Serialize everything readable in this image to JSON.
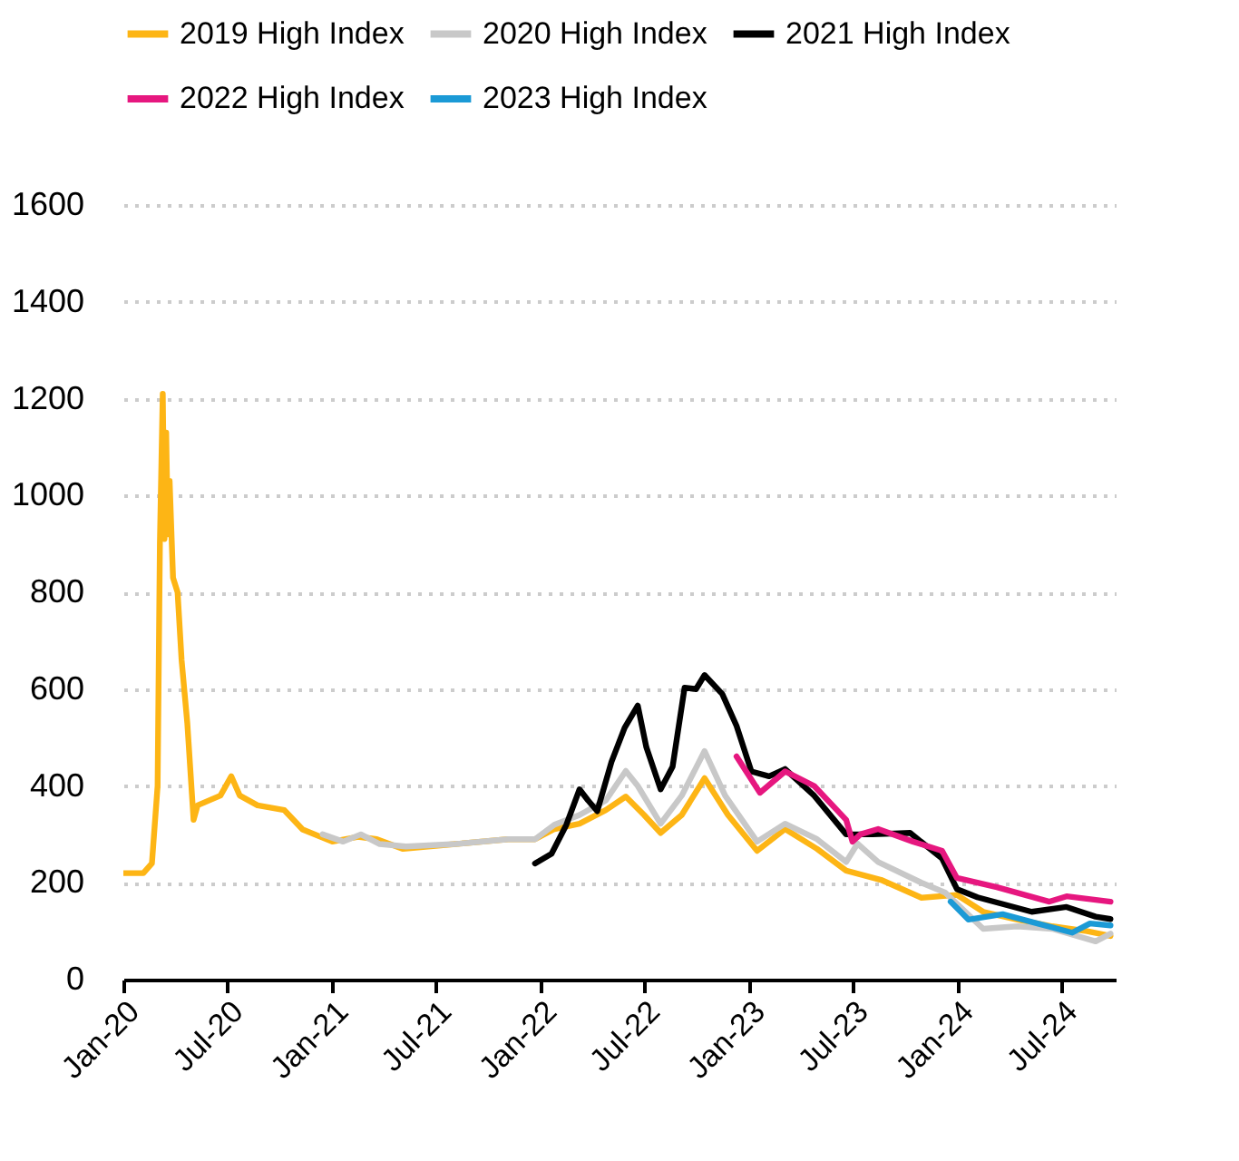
{
  "chart_data": {
    "type": "line",
    "xlim": [
      "2020-01-01",
      "2024-10-04"
    ],
    "xticks": [
      {
        "value": "2020-01-01",
        "label": "Jan-20"
      },
      {
        "value": "2020-07-01",
        "label": "Jul-20"
      },
      {
        "value": "2021-01-01",
        "label": "Jan-21"
      },
      {
        "value": "2021-07-01",
        "label": "Jul-21"
      },
      {
        "value": "2022-01-01",
        "label": "Jan-22"
      },
      {
        "value": "2022-07-01",
        "label": "Jul-22"
      },
      {
        "value": "2023-01-01",
        "label": "Jan-23"
      },
      {
        "value": "2023-07-01",
        "label": "Jul-23"
      },
      {
        "value": "2024-01-01",
        "label": "Jan-24"
      },
      {
        "value": "2024-07-01",
        "label": "Jul-24"
      }
    ],
    "ylim": [
      0,
      1600
    ],
    "yticks": [
      0,
      200,
      400,
      600,
      800,
      1000,
      1200,
      1400,
      1600
    ],
    "grid": "y",
    "legend": "top",
    "marker": "none",
    "line_style": "solid",
    "series": [
      {
        "name": "2019 High Index",
        "color": "#fdb515",
        "x": [
          "2020-01-01",
          "2020-02-05",
          "2020-02-20",
          "2020-03-01",
          "2020-03-05",
          "2020-03-10",
          "2020-03-13",
          "2020-03-16",
          "2020-03-19",
          "2020-03-22",
          "2020-03-28",
          "2020-04-05",
          "2020-04-12",
          "2020-04-22",
          "2020-05-03",
          "2020-05-10",
          "2020-06-19",
          "2020-07-08",
          "2020-07-23",
          "2020-08-23",
          "2020-10-09",
          "2020-11-10",
          "2021-01-01",
          "2021-02-15",
          "2021-03-20",
          "2021-05-05",
          "2021-08-05",
          "2021-11-05",
          "2021-12-22",
          "2022-01-25",
          "2022-03-10",
          "2022-04-25",
          "2022-05-30",
          "2022-07-01",
          "2022-07-30",
          "2022-09-05",
          "2022-10-15",
          "2022-11-25",
          "2023-01-15",
          "2023-03-05",
          "2023-04-30",
          "2023-06-20",
          "2023-08-20",
          "2023-10-30",
          "2023-12-31",
          "2024-02-15",
          "2024-04-15",
          "2024-06-15",
          "2024-08-15",
          "2024-09-25"
        ],
        "values": [
          220,
          220,
          240,
          400,
          900,
          1210,
          910,
          1130,
          920,
          1030,
          830,
          800,
          660,
          530,
          330,
          360,
          380,
          420,
          380,
          360,
          350,
          310,
          285,
          295,
          290,
          270,
          280,
          290,
          290,
          311,
          322,
          350,
          378,
          340,
          303,
          340,
          416,
          340,
          266,
          311,
          270,
          225,
          206,
          169,
          175,
          140,
          124,
          110,
          100,
          90
        ]
      },
      {
        "name": "2020 High Index",
        "color": "#c8c8c8",
        "x": [
          "2020-12-15",
          "2021-01-20",
          "2021-02-20",
          "2021-03-25",
          "2021-05-10",
          "2021-08-05",
          "2021-11-05",
          "2021-12-22",
          "2022-01-25",
          "2022-03-10",
          "2022-04-25",
          "2022-05-30",
          "2022-06-20",
          "2022-07-30",
          "2022-09-05",
          "2022-10-15",
          "2022-11-20",
          "2023-01-15",
          "2023-03-05",
          "2023-04-30",
          "2023-06-20",
          "2023-07-10",
          "2023-08-15",
          "2023-10-30",
          "2023-12-10",
          "2024-02-15",
          "2024-04-15",
          "2024-06-15",
          "2024-08-30",
          "2024-09-25"
        ],
        "values": [
          300,
          285,
          300,
          280,
          275,
          280,
          290,
          290,
          320,
          340,
          370,
          431,
          400,
          322,
          380,
          472,
          380,
          285,
          322,
          290,
          243,
          281,
          243,
          200,
          180,
          105,
          110,
          105,
          79,
          95
        ]
      },
      {
        "name": "2021 High Index",
        "color": "#000000",
        "x": [
          "2021-12-22",
          "2022-01-20",
          "2022-02-15",
          "2022-03-10",
          "2022-03-25",
          "2022-04-10",
          "2022-05-05",
          "2022-05-28",
          "2022-06-20",
          "2022-07-05",
          "2022-07-30",
          "2022-08-20",
          "2022-09-10",
          "2022-09-30",
          "2022-10-15",
          "2022-11-15",
          "2022-12-10",
          "2023-01-05",
          "2023-02-05",
          "2023-03-05",
          "2023-04-25",
          "2023-06-20",
          "2023-08-05",
          "2023-10-10",
          "2023-12-05",
          "2023-12-31",
          "2024-02-05",
          "2024-05-10",
          "2024-07-10",
          "2024-08-30",
          "2024-09-25"
        ],
        "values": [
          240,
          260,
          320,
          393,
          370,
          348,
          450,
          520,
          566,
          480,
          393,
          440,
          603,
          600,
          629,
          590,
          524,
          430,
          420,
          435,
          380,
          300,
          300,
          303,
          250,
          187,
          170,
          140,
          150,
          130,
          125
        ]
      },
      {
        "name": "2022 High Index",
        "color": "#e6177f",
        "x": [
          "2022-12-10",
          "2023-01-20",
          "2023-03-05",
          "2023-04-25",
          "2023-06-20",
          "2023-07-01",
          "2023-07-15",
          "2023-08-15",
          "2023-10-15",
          "2023-12-05",
          "2023-12-31",
          "2024-03-10",
          "2024-06-10",
          "2024-07-10",
          "2024-09-25"
        ],
        "values": [
          461,
          386,
          430,
          400,
          330,
          285,
          300,
          311,
          285,
          266,
          210,
          191,
          161,
          172,
          161
        ]
      },
      {
        "name": "2023 High Index",
        "color": "#1b9ad6",
        "x": [
          "2023-12-20",
          "2024-01-20",
          "2024-03-20",
          "2024-05-20",
          "2024-07-20",
          "2024-08-20",
          "2024-09-25"
        ],
        "values": [
          161,
          124,
          135,
          116,
          97,
          116,
          112
        ]
      }
    ]
  }
}
